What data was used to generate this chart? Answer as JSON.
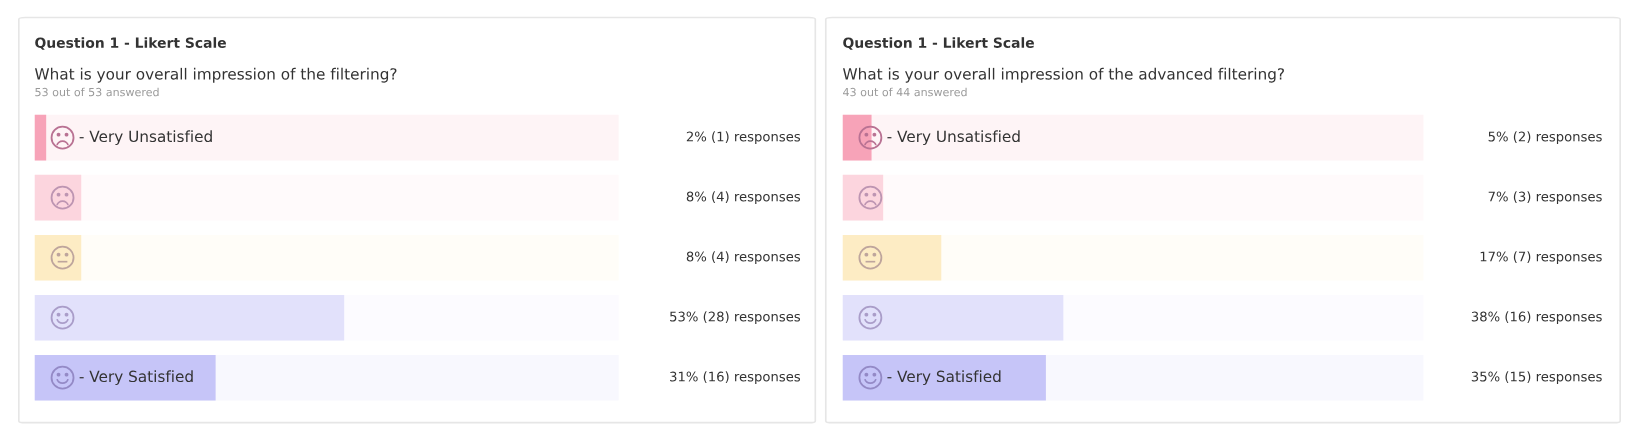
{
  "chart_data": [
    {
      "type": "bar",
      "orientation": "horizontal",
      "title": "Question 1 - Likert Scale",
      "subtitle": "What is your overall impression of the filtering?",
      "annotations": [
        "53 out of 53 answered"
      ],
      "categories": [
        "- Very Unsatisfied",
        null,
        null,
        null,
        "- Very Satisfied"
      ],
      "values": [
        2,
        8,
        8,
        53,
        31
      ],
      "value_labels": [
        "2% (1) responses",
        "8% (4) responses",
        "8% (4) responses",
        "53% (28) responses",
        "31% (16) responses"
      ],
      "colors": [
        "#f7a3b8",
        "#fcd5de",
        "#fdecc4",
        "#e2e1fb",
        "#c6c5f8"
      ],
      "xlim": [
        0,
        100
      ]
    },
    {
      "type": "bar",
      "orientation": "horizontal",
      "title": "Question 1 - Likert Scale",
      "subtitle": "What is your overall impression of the advanced filtering?",
      "annotations": [
        "43 out of 44 answered"
      ],
      "categories": [
        "- Very Unsatisfied",
        null,
        null,
        null,
        "- Very Satisfied"
      ],
      "values": [
        5,
        7,
        17,
        38,
        35
      ],
      "value_labels": [
        "5% (2) responses",
        "7% (3) responses",
        "17% (7) responses",
        "38% (16) responses",
        "35% (15) responses"
      ],
      "colors": [
        "#f7a3b8",
        "#fcd5de",
        "#fdecc4",
        "#e2e1fb",
        "#c6c5f8"
      ],
      "xlim": [
        0,
        100
      ]
    }
  ]
}
